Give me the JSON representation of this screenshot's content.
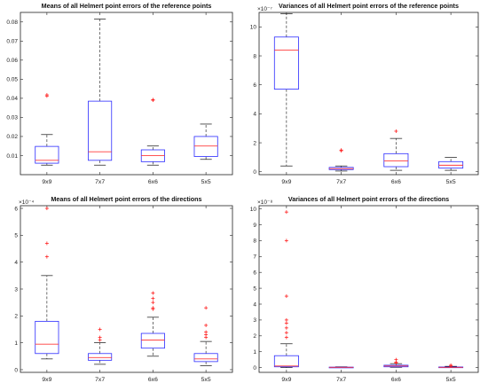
{
  "colors": {
    "box": "#2b2bff",
    "median": "#ff3b3b",
    "outlier": "#ff2020",
    "whisker": "#111111",
    "axis": "#222222"
  },
  "chart_data": [
    {
      "type": "box",
      "title": "Means of all Helmert point errors of the reference points",
      "categories": [
        "9x9",
        "7x7",
        "6x6",
        "5x5"
      ],
      "ylim": [
        0,
        0.085
      ],
      "exponent_label": "",
      "yticks": [
        0.01,
        0.02,
        0.03,
        0.04,
        0.05,
        0.06,
        0.07,
        0.08
      ],
      "ytick_labels": [
        "0.01",
        "0.02",
        "0.03",
        "0.04",
        "0.05",
        "0.06",
        "0.07",
        "0.08"
      ],
      "boxes": [
        {
          "whislo": 0.005,
          "q1": 0.006,
          "med": 0.0075,
          "q3": 0.0148,
          "whishi": 0.021,
          "fliers": [
            0.0412,
            0.0418
          ]
        },
        {
          "whislo": 0.005,
          "q1": 0.0075,
          "med": 0.012,
          "q3": 0.0385,
          "whishi": 0.0815,
          "fliers": []
        },
        {
          "whislo": 0.005,
          "q1": 0.0068,
          "med": 0.01,
          "q3": 0.013,
          "whishi": 0.015,
          "fliers": [
            0.039,
            0.0393
          ]
        },
        {
          "whislo": 0.008,
          "q1": 0.0095,
          "med": 0.015,
          "q3": 0.02,
          "whishi": 0.0265,
          "fliers": []
        }
      ]
    },
    {
      "type": "box",
      "title": "Variances of all Helmert point errors of the reference points",
      "categories": [
        "9x9",
        "7x7",
        "6x6",
        "5x5"
      ],
      "ylim": [
        -0.2,
        11
      ],
      "exponent_label": "×10⁻⁷",
      "yticks": [
        0,
        2,
        4,
        6,
        8,
        10
      ],
      "ytick_labels": [
        "0",
        "2",
        "4",
        "6",
        "8",
        "10"
      ],
      "boxes": [
        {
          "whislo": 0.4,
          "q1": 5.7,
          "med": 8.4,
          "q3": 9.3,
          "whishi": 10.9,
          "fliers": []
        },
        {
          "whislo": 0.05,
          "q1": 0.15,
          "med": 0.22,
          "q3": 0.3,
          "whishi": 0.4,
          "fliers": [
            1.45,
            1.5
          ]
        },
        {
          "whislo": 0.1,
          "q1": 0.35,
          "med": 0.75,
          "q3": 1.25,
          "whishi": 2.3,
          "fliers": [
            2.8
          ]
        },
        {
          "whislo": 0.1,
          "q1": 0.25,
          "med": 0.45,
          "q3": 0.7,
          "whishi": 1.0,
          "fliers": []
        }
      ]
    },
    {
      "type": "box",
      "title": "Means of all Helmert point errors of the directions",
      "categories": [
        "9x9",
        "7x7",
        "6x6",
        "5x5"
      ],
      "ylim": [
        -0.1,
        6.1
      ],
      "exponent_label": "×10⁻⁴",
      "yticks": [
        0,
        1,
        2,
        3,
        4,
        5,
        6
      ],
      "ytick_labels": [
        "0",
        "1",
        "2",
        "3",
        "4",
        "5",
        "6"
      ],
      "boxes": [
        {
          "whislo": 0.4,
          "q1": 0.6,
          "med": 0.95,
          "q3": 1.8,
          "whishi": 3.5,
          "fliers": [
            4.2,
            4.7,
            6.0
          ]
        },
        {
          "whislo": 0.2,
          "q1": 0.35,
          "med": 0.45,
          "q3": 0.6,
          "whishi": 1.0,
          "fliers": [
            1.1,
            1.2,
            1.5
          ]
        },
        {
          "whislo": 0.5,
          "q1": 0.8,
          "med": 1.1,
          "q3": 1.35,
          "whishi": 1.95,
          "fliers": [
            2.25,
            2.3,
            2.5,
            2.65,
            2.85
          ]
        },
        {
          "whislo": 0.15,
          "q1": 0.3,
          "med": 0.4,
          "q3": 0.6,
          "whishi": 1.05,
          "fliers": [
            1.2,
            1.3,
            1.4,
            1.65,
            2.3
          ]
        }
      ]
    },
    {
      "type": "box",
      "title": "Variances of all Helmert point errors of the directions",
      "categories": [
        "9x9",
        "7x7",
        "6x6",
        "5x5"
      ],
      "ylim": [
        -0.3,
        10.2
      ],
      "exponent_label": "×10⁻⁸",
      "yticks": [
        0,
        1,
        2,
        3,
        4,
        5,
        6,
        7,
        8,
        9,
        10
      ],
      "ytick_labels": [
        "0",
        "1",
        "2",
        "3",
        "4",
        "5",
        "6",
        "7",
        "8",
        "9",
        "10"
      ],
      "boxes": [
        {
          "whislo": 0.0,
          "q1": 0.05,
          "med": 0.1,
          "q3": 0.75,
          "whishi": 1.5,
          "fliers": [
            1.9,
            2.2,
            2.5,
            2.8,
            3.0,
            4.5,
            8.0,
            9.8
          ]
        },
        {
          "whislo": 0.0,
          "q1": 0.01,
          "med": 0.02,
          "q3": 0.03,
          "whishi": 0.05,
          "fliers": []
        },
        {
          "whislo": 0.02,
          "q1": 0.05,
          "med": 0.1,
          "q3": 0.15,
          "whishi": 0.25,
          "fliers": [
            0.3,
            0.35,
            0.5
          ]
        },
        {
          "whislo": 0.0,
          "q1": 0.01,
          "med": 0.02,
          "q3": 0.04,
          "whishi": 0.08,
          "fliers": [
            0.1,
            0.15
          ]
        }
      ]
    }
  ]
}
